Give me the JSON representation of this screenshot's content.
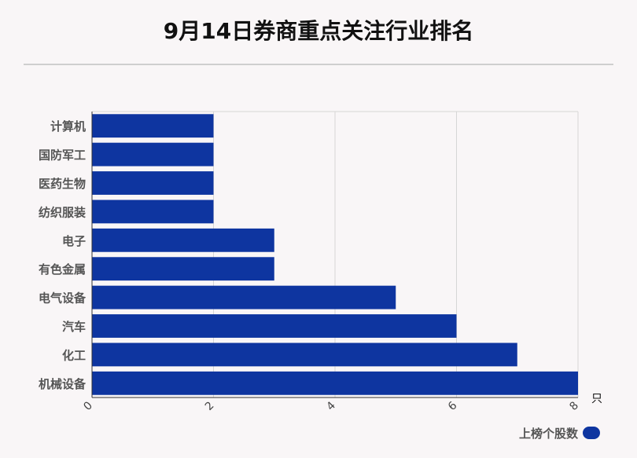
{
  "page_title": "9月14日券商重点关注行业排名",
  "colors": {
    "bar": "#0e35a0",
    "grid": "#d6d6d6",
    "axis": "#333333",
    "category_text": "#555555"
  },
  "chart_data": {
    "type": "bar",
    "orientation": "horizontal",
    "title": "9月14日券商重点关注行业排名",
    "categories": [
      "计算机",
      "国防军工",
      "医药生物",
      "纺织服装",
      "电子",
      "有色金属",
      "电气设备",
      "汽车",
      "化工",
      "机械设备"
    ],
    "series": [
      {
        "name": "上榜个股数",
        "values": [
          2,
          2,
          2,
          2,
          3,
          3,
          5,
          6,
          7,
          8
        ]
      }
    ],
    "x_unit": "只",
    "xlim": [
      0,
      8
    ],
    "x_ticks": [
      "0",
      "2",
      "4",
      "6",
      "8"
    ],
    "grid": true,
    "legend": "bottom-right"
  }
}
